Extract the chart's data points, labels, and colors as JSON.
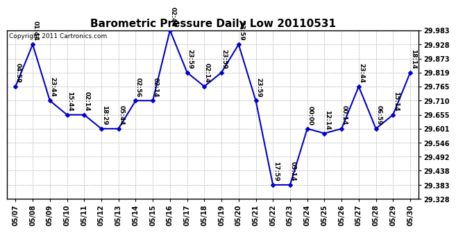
{
  "title": "Barometric Pressure Daily Low 20110531",
  "copyright": "Copyright 2011 Cartronics.com",
  "x_labels": [
    "05/07",
    "05/08",
    "05/09",
    "05/10",
    "05/11",
    "05/12",
    "05/13",
    "05/14",
    "05/15",
    "05/16",
    "05/17",
    "05/18",
    "05/19",
    "05/20",
    "05/21",
    "05/22",
    "05/23",
    "05/24",
    "05/25",
    "05/26",
    "05/27",
    "05/28",
    "05/29",
    "05/30"
  ],
  "y_values": [
    29.765,
    29.928,
    29.71,
    29.655,
    29.655,
    29.601,
    29.601,
    29.71,
    29.71,
    29.983,
    29.819,
    29.765,
    29.819,
    29.928,
    29.71,
    29.383,
    29.383,
    29.601,
    29.583,
    29.601,
    29.765,
    29.601,
    29.655,
    29.819
  ],
  "time_labels": [
    "04:59",
    "01:44",
    "23:44",
    "15:44",
    "02:14",
    "18:29",
    "05:44",
    "02:56",
    "02:14",
    "02:44",
    "23:59",
    "02:14",
    "23:59",
    "23:59",
    "23:59",
    "17:59",
    "03:14",
    "00:00",
    "12:14",
    "00:14",
    "23:44",
    "06:59",
    "15:14",
    "18:14"
  ],
  "ylim_min": 29.328,
  "ylim_max": 29.983,
  "yticks": [
    29.328,
    29.383,
    29.438,
    29.492,
    29.546,
    29.601,
    29.655,
    29.71,
    29.765,
    29.819,
    29.873,
    29.928,
    29.983
  ],
  "line_color": "#0000CC",
  "marker_color": "#0000CC",
  "bg_color": "#ffffff",
  "grid_color": "#aaaaaa",
  "title_fontsize": 11,
  "label_fontsize": 6.5,
  "tick_fontsize": 7,
  "copyright_fontsize": 6.5
}
